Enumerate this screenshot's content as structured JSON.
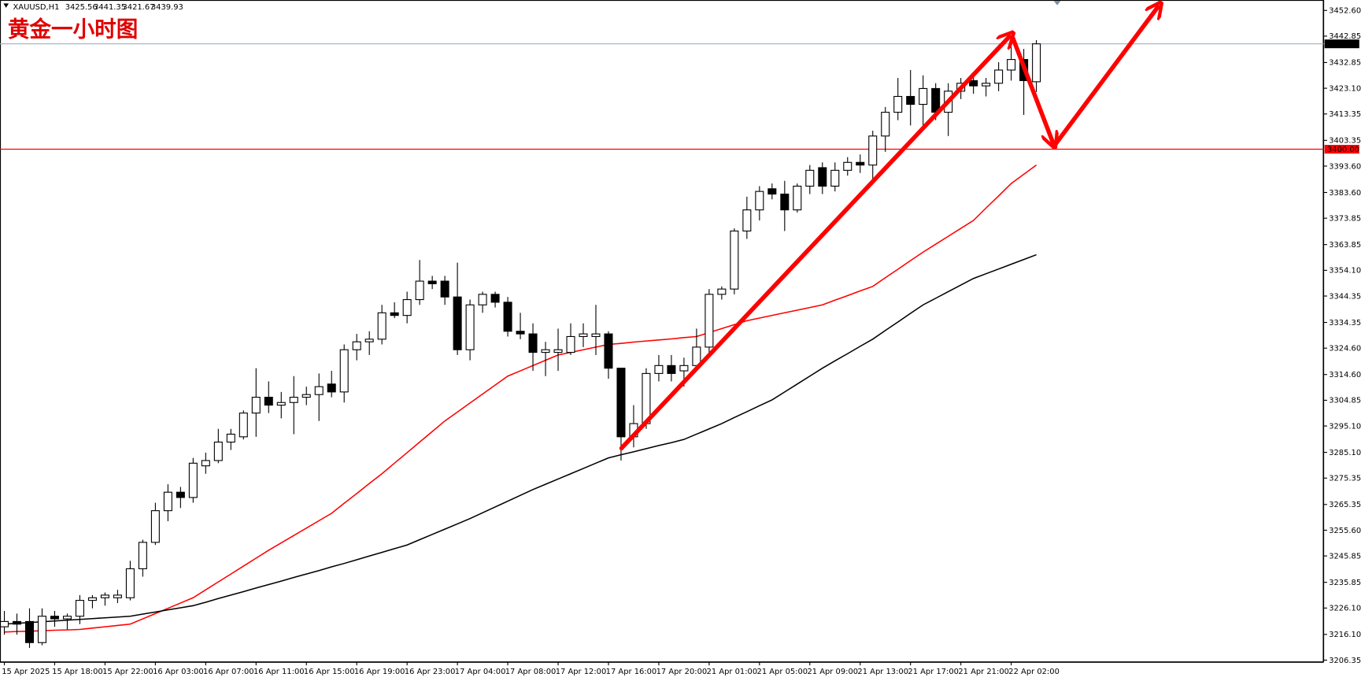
{
  "chart_data": {
    "type": "candlestick",
    "title": "XAUUSD,H1",
    "annotation": "黄金一小时图",
    "categories": [
      "15 Apr 2025",
      null,
      null,
      null,
      "15 Apr 18:00",
      null,
      null,
      null,
      "15 Apr 22:00",
      null,
      null,
      null,
      "16 Apr 03:00",
      null,
      null,
      null,
      "16 Apr 07:00",
      null,
      null,
      null,
      "16 Apr 11:00",
      null,
      null,
      null,
      "16 Apr 15:00",
      null,
      null,
      null,
      "16 Apr 19:00",
      null,
      null,
      null,
      "16 Apr 23:00",
      null,
      null,
      null,
      "17 Apr 04:00",
      null,
      null,
      null,
      "17 Apr 08:00",
      null,
      null,
      null,
      "17 Apr 12:00",
      null,
      null,
      null,
      "17 Apr 16:00",
      null,
      null,
      null,
      "17 Apr 20:00",
      null,
      null,
      null,
      "21 Apr 01:00",
      null,
      null,
      null,
      "21 Apr 05:00",
      null,
      null,
      null,
      "21 Apr 09:00",
      null,
      null,
      null,
      "21 Apr 13:00",
      null,
      null,
      null,
      "21 Apr 17:00",
      null,
      null,
      null,
      "21 Apr 21:00",
      null,
      null,
      null,
      "22 Apr 02:00",
      null,
      null
    ],
    "open": [
      3219,
      3221,
      3221,
      3213,
      3223,
      3222,
      3223,
      3229,
      3230,
      3230,
      3230,
      3241,
      3251,
      3263,
      3270,
      3268,
      3280,
      3282,
      3289,
      3291,
      3300,
      3306,
      3303,
      3304,
      3306,
      3307,
      3311,
      3308,
      3324,
      3327,
      3328,
      3338,
      3337,
      3343,
      3350,
      3350,
      3344,
      3324,
      3341,
      3345,
      3342,
      3331,
      3330,
      3323,
      3323,
      3323,
      3329,
      3329,
      3330,
      3317,
      3291,
      3296,
      3315,
      3318,
      3316,
      3318,
      3325,
      3345,
      3347,
      3369,
      3377,
      3385,
      3383,
      3377,
      3386,
      3393,
      3386,
      3392,
      3395,
      3394,
      3405,
      3414,
      3420,
      3417,
      3423,
      3414,
      3422,
      3426,
      3424,
      3425,
      3430,
      3434,
      3425.56
    ],
    "high": [
      3225,
      3224,
      3226,
      3226,
      3225,
      3224,
      3231,
      3231,
      3232,
      3233,
      3244,
      3252,
      3266,
      3273,
      3272,
      3283,
      3285,
      3294,
      3294,
      3301,
      3317,
      3312,
      3308,
      3314,
      3310,
      3315,
      3316,
      3326,
      3330,
      3331,
      3341,
      3342,
      3346,
      3358,
      3352,
      3352,
      3357,
      3343,
      3346,
      3346,
      3344,
      3338,
      3334,
      3327,
      3332,
      3334,
      3334,
      3341,
      3331,
      3317,
      3303,
      3317,
      3322,
      3322,
      3321,
      3332,
      3347,
      3348,
      3370,
      3382,
      3386,
      3387,
      3388,
      3387,
      3394,
      3395,
      3395,
      3397,
      3398,
      3407,
      3416,
      3427,
      3430,
      3428,
      3425,
      3425,
      3427,
      3428,
      3427,
      3433,
      3442,
      3438,
      3441.35
    ],
    "low": [
      3216,
      3216,
      3211,
      3212,
      3219,
      3218,
      3220,
      3226,
      3227,
      3228,
      3229,
      3238,
      3250,
      3259,
      3264,
      3266,
      3277,
      3281,
      3286,
      3290,
      3291,
      3300,
      3298,
      3292,
      3303,
      3297,
      3306,
      3304,
      3320,
      3322,
      3326,
      3336,
      3334,
      3341,
      3347,
      3341,
      3322,
      3320,
      3338,
      3340,
      3329,
      3328,
      3316,
      3314,
      3316,
      3322,
      3325,
      3322,
      3313,
      3282,
      3287,
      3294,
      3312,
      3312,
      3310,
      3316,
      3322,
      3343,
      3345,
      3366,
      3373,
      3381,
      3369,
      3376,
      3383,
      3383,
      3384,
      3390,
      3391,
      3388,
      3399,
      3411,
      3409,
      3409,
      3411,
      3405,
      3419,
      3421,
      3420,
      3422,
      3426,
      3413,
      3421.67
    ],
    "close": [
      3221,
      3220,
      3213,
      3223,
      3222,
      3223,
      3229,
      3230,
      3231,
      3231,
      3241,
      3251,
      3263,
      3270,
      3268,
      3281,
      3282,
      3289,
      3292,
      3300,
      3306,
      3303,
      3304,
      3306,
      3307,
      3310,
      3308,
      3324,
      3327,
      3328,
      3338,
      3337,
      3343,
      3350,
      3349,
      3344,
      3324,
      3341,
      3345,
      3342,
      3331,
      3330,
      3323,
      3324,
      3324,
      3329,
      3330,
      3330,
      3317,
      3291,
      3296,
      3315,
      3318,
      3315,
      3318,
      3325,
      3345,
      3347,
      3369,
      3377,
      3384,
      3383,
      3377,
      3386,
      3392,
      3386,
      3392,
      3395,
      3394,
      3405,
      3414,
      3420,
      3417,
      3423,
      3414,
      3422,
      3425,
      3424,
      3425,
      3430,
      3434,
      3426,
      3439.93
    ],
    "series": [
      {
        "color": "#ff0000",
        "values": [
          3217,
          3217.2,
          3217.3,
          3217.5,
          3217.7,
          3217.8,
          3218,
          3218.5,
          3219,
          3219.5,
          3220,
          3222,
          3224,
          3226,
          3228,
          3230,
          3233,
          3236,
          3239,
          3242,
          3245,
          3248,
          3250.8,
          3253.6,
          3256.4,
          3259.2,
          3262,
          3265.8,
          3269.5,
          3273.3,
          3277,
          3281,
          3285,
          3289,
          3293,
          3297,
          3300.4,
          3303.8,
          3307.2,
          3310.6,
          3314,
          3316,
          3318,
          3320,
          3322,
          3323,
          3324,
          3325,
          3326,
          3326.4,
          3326.9,
          3327.3,
          3327.7,
          3328.1,
          3328.6,
          3329,
          3330.5,
          3332,
          3333.5,
          3335,
          3336,
          3337,
          3338,
          3339,
          3340,
          3341,
          3342.8,
          3344.5,
          3346.3,
          3348,
          3351.3,
          3354.5,
          3357.8,
          3361,
          3364,
          3367,
          3370,
          3373,
          3377.7,
          3382.3,
          3387,
          3390.5,
          3394
        ]
      },
      {
        "color": "#000000",
        "values": [
          3220,
          3220.3,
          3220.6,
          3220.9,
          3221.2,
          3221.5,
          3221.8,
          3222.1,
          3222.4,
          3222.7,
          3223,
          3223.8,
          3224.6,
          3225.4,
          3226.2,
          3227,
          3228.3,
          3229.7,
          3231,
          3232.3,
          3233.7,
          3235,
          3236.3,
          3237.7,
          3239,
          3240.3,
          3241.7,
          3243,
          3244.4,
          3245.8,
          3247.2,
          3248.6,
          3250,
          3252,
          3254,
          3256,
          3258,
          3260,
          3262.2,
          3264.4,
          3266.6,
          3268.8,
          3271,
          3273,
          3275,
          3277,
          3279,
          3281,
          3283,
          3284.2,
          3285.3,
          3286.5,
          3287.7,
          3288.8,
          3290,
          3292,
          3294,
          3296,
          3298.3,
          3300.5,
          3302.8,
          3305,
          3308,
          3311,
          3314,
          3317,
          3319.8,
          3322.5,
          3325.3,
          3328,
          3331.3,
          3334.5,
          3337.8,
          3341,
          3343.5,
          3346,
          3348.5,
          3351,
          3352.8,
          3354.6,
          3356.4,
          3358.2,
          3360
        ]
      }
    ],
    "up_color": "#ffffff",
    "down_color": "#000000",
    "hlines": [
      {
        "value": 3400,
        "label": "3400.00",
        "color": "#ff0000"
      }
    ],
    "ylim": [
      3205.69,
      3456.55
    ],
    "yticks": [
      {
        "value": 3452.6,
        "label": "3452.60"
      },
      3442.85,
      3432.85,
      {
        "value": 3423.1,
        "label": "3423.10"
      },
      3413.35,
      3403.35,
      {
        "value": 3393.6,
        "label": "3393.60"
      },
      {
        "value": 3383.6,
        "label": "3383.60"
      },
      3373.85,
      3363.85,
      {
        "value": 3354.1,
        "label": "3354.10"
      },
      3344.35,
      3334.35,
      {
        "value": 3324.6,
        "label": "3324.60"
      },
      {
        "value": 3314.6,
        "label": "3314.60"
      },
      3304.85,
      {
        "value": 3295.1,
        "label": "3295.10"
      },
      {
        "value": 3285.1,
        "label": "3285.10"
      },
      3275.35,
      3265.35,
      {
        "value": 3255.6,
        "label": "3255.60"
      },
      3245.85,
      3235.85,
      {
        "value": 3226.1,
        "label": "3226.10"
      },
      {
        "value": 3216.1,
        "label": "3216.10"
      },
      3206.35
    ],
    "grid": false
  }
}
